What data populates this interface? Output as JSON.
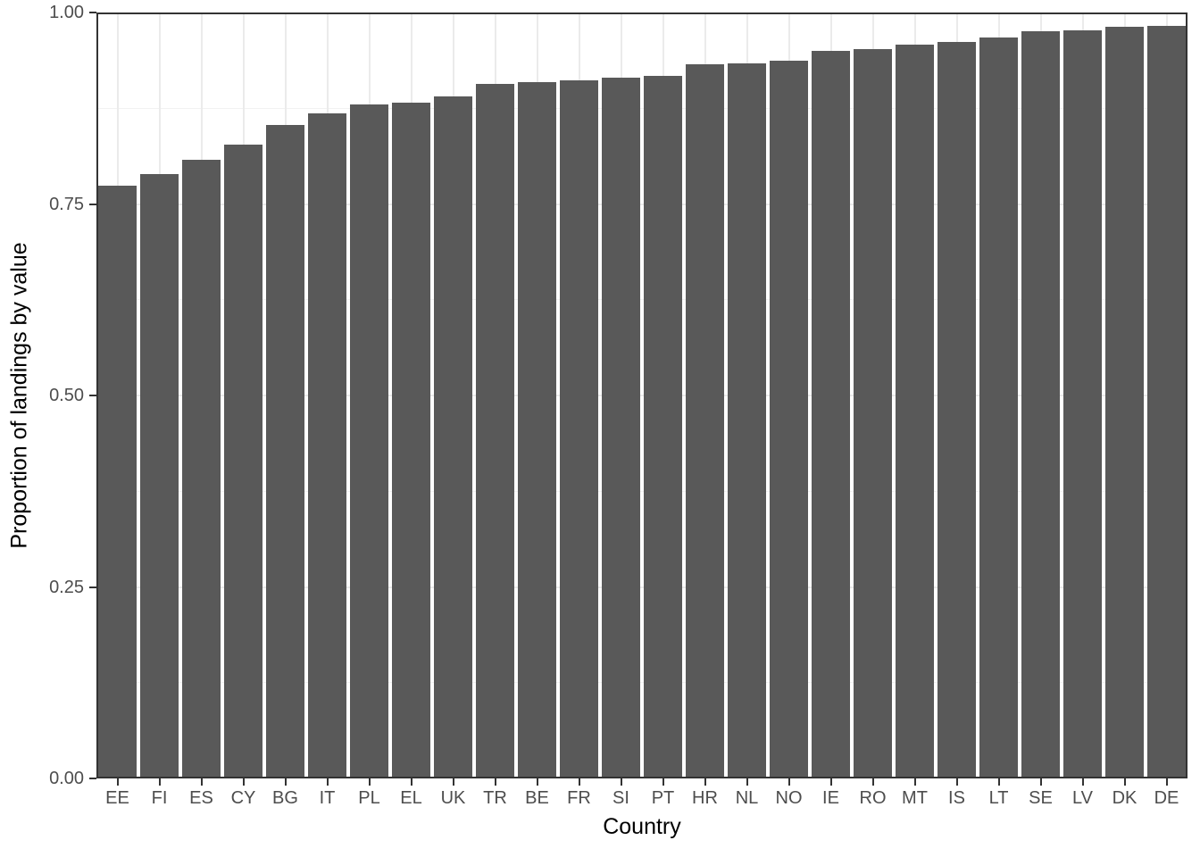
{
  "chart_data": {
    "type": "bar",
    "title": "",
    "xlabel": "Country",
    "ylabel": "Proportion of landings by value",
    "categories": [
      "EE",
      "FI",
      "ES",
      "CY",
      "BG",
      "IT",
      "PL",
      "EL",
      "UK",
      "TR",
      "BE",
      "FR",
      "SI",
      "PT",
      "HR",
      "NL",
      "NO",
      "IE",
      "RO",
      "MT",
      "IS",
      "LT",
      "SE",
      "LV",
      "DK",
      "DE"
    ],
    "values": [
      0.774,
      0.789,
      0.808,
      0.828,
      0.853,
      0.868,
      0.88,
      0.882,
      0.891,
      0.907,
      0.909,
      0.912,
      0.915,
      0.917,
      0.932,
      0.934,
      0.937,
      0.95,
      0.952,
      0.958,
      0.961,
      0.967,
      0.975,
      0.977,
      0.981,
      0.982
    ],
    "ylim": [
      0,
      1
    ],
    "yticks": [
      0,
      0.25,
      0.5,
      0.75,
      1.0
    ],
    "ytick_labels": [
      "0.00",
      "0.25",
      "0.50",
      "0.75",
      "1.00"
    ],
    "yticks_minor": [
      0.125,
      0.375,
      0.625,
      0.875
    ],
    "grid": true,
    "legend": false,
    "bar_width_fraction": 0.9,
    "colors": {
      "bar_fill": "#595959",
      "panel_border": "#333333",
      "grid_major": "#EBEBEB",
      "grid_minor": "#F2F2F2",
      "tick_mark": "#333333",
      "tick_label": "#4D4D4D",
      "axis_title": "#000000",
      "background": "#FFFFFF"
    }
  }
}
